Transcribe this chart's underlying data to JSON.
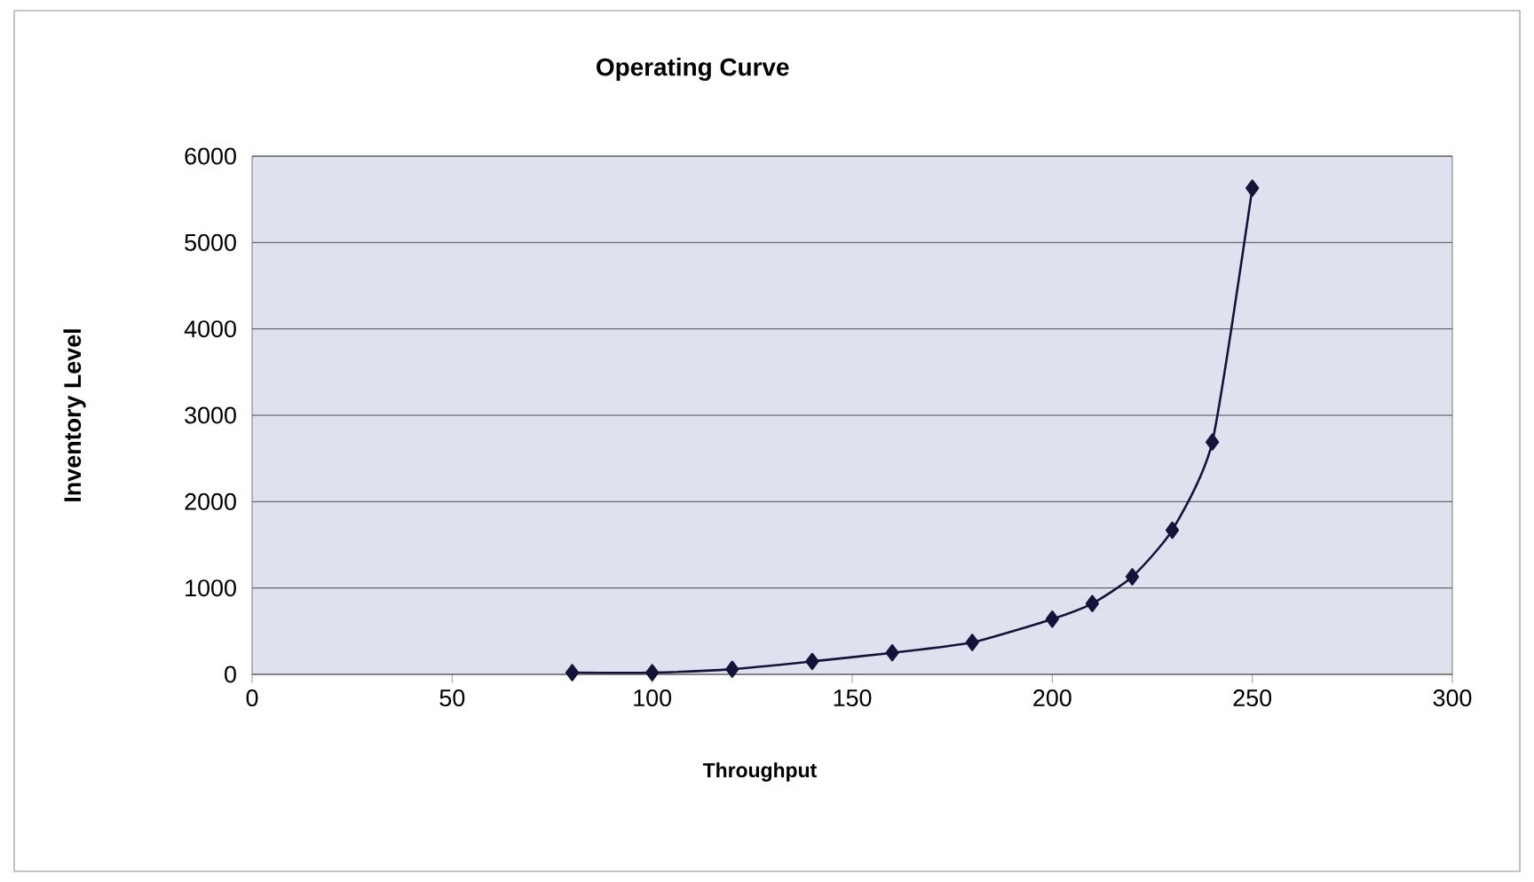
{
  "chart_data": {
    "type": "line",
    "title": "Operating Curve",
    "xlabel": "Throughput",
    "ylabel": "Inventory Level",
    "x": [
      80,
      100,
      120,
      140,
      160,
      180,
      200,
      210,
      220,
      230,
      240,
      250
    ],
    "series": [
      {
        "color": "#14143a",
        "values": [
          20,
          20,
          60,
          150,
          250,
          370,
          640,
          820,
          1130,
          1670,
          2690,
          5630
        ]
      }
    ],
    "xlim": [
      0,
      300
    ],
    "xticks": [
      0,
      50,
      100,
      150,
      200,
      250,
      300
    ],
    "ylim": [
      0,
      6000
    ],
    "yticks": [
      0,
      1000,
      2000,
      3000,
      4000,
      5000,
      6000
    ],
    "grid": "y",
    "marker": "diamond",
    "line_style": "solid"
  }
}
